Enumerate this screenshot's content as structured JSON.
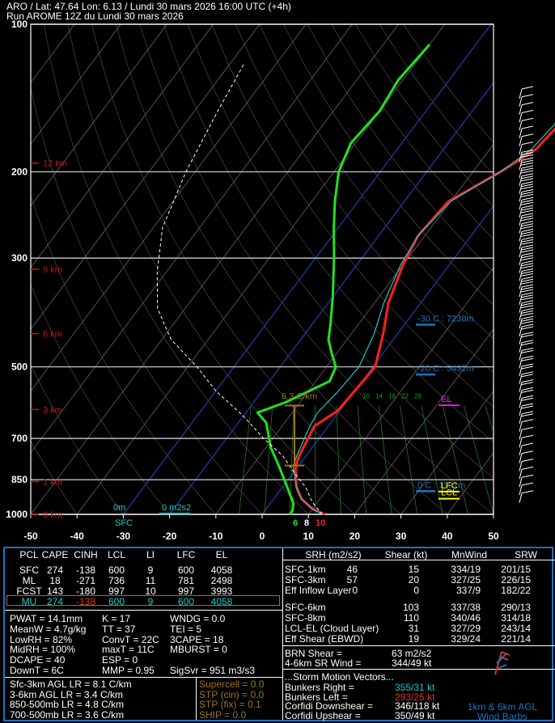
{
  "header": {
    "line1": "ARO / Lat: 47.64 Lon: 6.13 / Lundi 30 mars 2026 16:00 UTC (+4h)",
    "line2": "Run AROME 12Z du Lundi 30 mars 2026"
  },
  "chart_data": {
    "type": "line",
    "title": "",
    "xlabel": "",
    "ylabel": "",
    "pressure_ticks": [
      "100",
      "200",
      "300",
      "500",
      "700",
      "850",
      "1000"
    ],
    "temp_ticks": [
      "-50",
      "-40",
      "-30",
      "-20",
      "-10",
      "0",
      "10",
      "20",
      "30",
      "40",
      "50"
    ],
    "xlim": [
      -50,
      50
    ],
    "ylim_hpa": [
      1000,
      100
    ],
    "height_labels": [
      "12 km",
      "9 km",
      "6 km",
      "3 km",
      "1 km",
      "0 km"
    ],
    "series": [
      {
        "name": "",
        "color": "#ff2020",
        "points": [
          [
            13.5,
            1000
          ],
          [
            10,
            975
          ],
          [
            6,
            930
          ],
          [
            3,
            880
          ],
          [
            -0.5,
            800
          ],
          [
            -1.5,
            760
          ],
          [
            -3,
            660
          ],
          [
            -0.5,
            615
          ],
          [
            0,
            560
          ],
          [
            0.5,
            500
          ],
          [
            -3,
            430
          ],
          [
            -7,
            370
          ],
          [
            -10,
            310
          ],
          [
            -11.5,
            270
          ],
          [
            -10.5,
            230
          ],
          [
            -4,
            200
          ],
          [
            0,
            180
          ],
          [
            1.5,
            150
          ],
          [
            1,
            130
          ],
          [
            0,
            110
          ]
        ]
      },
      {
        "name": "",
        "color": "#25c4c8",
        "points": [
          [
            13,
            1000
          ],
          [
            10,
            975
          ],
          [
            6,
            930
          ],
          [
            3,
            880
          ],
          [
            -1,
            800
          ],
          [
            -2,
            760
          ],
          [
            -4,
            660
          ],
          [
            -4.5,
            620
          ],
          [
            -3.5,
            560
          ],
          [
            -3,
            500
          ],
          [
            -5,
            430
          ],
          [
            -8,
            370
          ],
          [
            -10.5,
            310
          ],
          [
            -11.5,
            270
          ],
          [
            -10,
            230
          ],
          [
            -4,
            200
          ],
          [
            -1,
            180
          ],
          [
            0.5,
            150
          ],
          [
            0,
            130
          ],
          [
            -1,
            110
          ]
        ]
      },
      {
        "name": "",
        "color": "#23e023",
        "points": [
          [
            6,
            1000
          ],
          [
            6,
            985
          ],
          [
            5,
            950
          ],
          [
            1,
            880
          ],
          [
            -4,
            800
          ],
          [
            -9,
            730
          ],
          [
            -14,
            650
          ],
          [
            -17.5,
            620
          ],
          [
            -13,
            590
          ],
          [
            -7,
            535
          ],
          [
            -8,
            500
          ],
          [
            -11,
            470
          ],
          [
            -14,
            440
          ],
          [
            -16,
            410
          ],
          [
            -20,
            360
          ],
          [
            -26,
            300
          ],
          [
            -31,
            260
          ],
          [
            -35,
            230
          ],
          [
            -39,
            200
          ],
          [
            -41,
            175
          ],
          [
            -40,
            150
          ],
          [
            -41,
            130
          ],
          [
            -40,
            110
          ]
        ]
      },
      {
        "name": "",
        "color": "#ffffff",
        "dashed": true,
        "points": [
          [
            13,
            1000
          ],
          [
            10,
            960
          ],
          [
            8,
            930
          ],
          [
            5,
            880
          ],
          [
            0,
            820
          ],
          [
            -5,
            760
          ],
          [
            -12,
            700
          ],
          [
            -20,
            630
          ],
          [
            -30,
            560
          ],
          [
            -38,
            500
          ],
          [
            -48,
            440
          ],
          [
            -56,
            380
          ],
          [
            -62,
            320
          ],
          [
            -68,
            260
          ],
          [
            -72,
            200
          ],
          [
            -75,
            150
          ],
          [
            -77,
            120
          ]
        ]
      }
    ],
    "isotherm_labels": [
      {
        "text": "-30 C : 7238m",
        "pressure": 398
      },
      {
        "text": "-20 C : 5432m",
        "pressure": 503
      },
      {
        "text": "0 C : 1191m",
        "pressure": 870
      }
    ],
    "levels": [
      {
        "name": "EL",
        "color": "#e020e0",
        "pressure": 590
      },
      {
        "name": "LFC",
        "color": "#ffff00",
        "pressure": 885
      },
      {
        "name": "LCL",
        "color": "#ffff00",
        "pressure": 915
      }
    ],
    "lapse_rate_label": "6.3 C/km",
    "surface_labels": {
      "sfc": "SFC",
      "zero_m": "0m",
      "srh": "0 m2s2"
    },
    "surface_temps": [
      "6",
      "8",
      "10"
    ],
    "mixing_ratio_labels": [
      "10",
      "14",
      "18",
      "22",
      "26"
    ],
    "wind_barbs": {
      "shown": true,
      "position": "right"
    }
  },
  "panel": {
    "parcel_headers": [
      "PCL",
      "CAPE",
      "CINH",
      "LCL",
      "LI",
      "LFC",
      "EL"
    ],
    "parcel_rows": [
      [
        "SFC",
        "274",
        "-138",
        "600",
        "9",
        "600",
        "4058"
      ],
      [
        "ML",
        "18",
        "-271",
        "736",
        "11",
        "781",
        "2498"
      ],
      [
        "FCST",
        "143",
        "-180",
        "997",
        "10",
        "997",
        "3993"
      ],
      [
        "MU",
        "274",
        "-138",
        "600",
        "9",
        "600",
        "4058"
      ]
    ],
    "indices": [
      [
        "PWAT = 14.1mm",
        "K = 17",
        "WNDG = 0.0"
      ],
      [
        "MeanW = 4.7g/kg",
        "TT = 37",
        "TEI = 5"
      ],
      [
        "LowRH = 82%",
        "ConvT = 22C",
        "3CAPE = 18"
      ],
      [
        "MidRH = 100%",
        "maxT = 11C",
        "MBURST = 0"
      ],
      [
        "DCAPE = 40",
        "ESP = 0",
        ""
      ],
      [
        "DownT = 6C",
        "MMP = 0.95",
        "SigSvr = 951 m3/s3"
      ]
    ],
    "lapse_rates": [
      "Sfc-3km AGL LR = 8.1 C/km",
      "3-6km AGL LR = 3.4 C/km",
      "850-500mb LR = 4.8 C/km",
      "700-500mb LR = 3.6 C/km"
    ],
    "composites": [
      "Supercell = 0.0",
      "STP (cin) = 0.0",
      "STP (fix) = 0.1",
      "SHIP = 0.0"
    ],
    "shear_headers": [
      "SRH (m2/s2)",
      "Shear (kt)",
      "MnWind",
      "SRW"
    ],
    "shear_rows": [
      [
        "SFC-1km",
        "46",
        "15",
        "334/19",
        "201/15"
      ],
      [
        "SFC-3km",
        "57",
        "20",
        "327/25",
        "226/15"
      ],
      [
        "Eff Inflow Layer",
        "0",
        "0",
        "337/9",
        "182/22"
      ],
      [
        "SFC-6km",
        "",
        "103",
        "337/38",
        "290/13"
      ],
      [
        "SFC-8km",
        "",
        "110",
        "340/46",
        "314/18"
      ],
      [
        "LCL-EL (Cloud Layer)",
        "",
        "31",
        "327/29",
        "243/14"
      ],
      [
        "Eff Shear (EBWD)",
        "",
        "19",
        "329/24",
        "221/14"
      ]
    ],
    "brn_shear_label": "BRN Shear =",
    "brn_shear_value": "63 m2/s2",
    "sr_wind_label": "4-6km SR Wind =",
    "sr_wind_value": "344/49 kt",
    "storm_motion_title": "...Storm Motion Vectors...",
    "storm_vectors": [
      [
        "Bunkers Right =",
        "355/31 kt"
      ],
      [
        "Bunkers Left =",
        "293/25 kt"
      ],
      [
        "Corfidi Downshear =",
        "346/118 kt"
      ],
      [
        "Corfidi Upshear =",
        "350/49 kt"
      ]
    ],
    "barb_note": [
      "1km & 6km AGL",
      "Wind Barbs"
    ]
  },
  "colors": {
    "temperature": "#ff2020",
    "virtual_temp": "#25c4c8",
    "dewpoint": "#23e023",
    "parcel": "#ffffff",
    "panel_border": "#1e73be",
    "height_labels": "#cc1111",
    "cyan_text": "#25c4c8",
    "composite_text": "#a0751a"
  }
}
